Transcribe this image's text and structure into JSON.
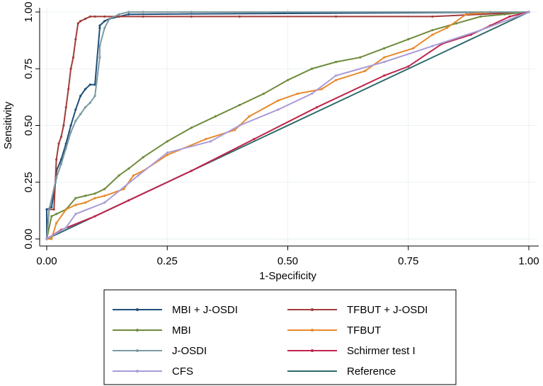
{
  "chart_data": {
    "type": "line",
    "xlabel": "1-Specificity",
    "ylabel": "Sensitivity",
    "xlim": [
      0,
      1
    ],
    "ylim": [
      0,
      1
    ],
    "xticks": [
      "0.00",
      "0.25",
      "0.50",
      "0.75",
      "1.00"
    ],
    "yticks": [
      "0.00",
      "0.25",
      "0.50",
      "0.75",
      "1.00"
    ],
    "grid": true,
    "legend_position": "bottom",
    "series": [
      {
        "name": "MBI + J-OSDI",
        "color": "#1f4e79",
        "x": [
          0,
          0,
          0.01,
          0.02,
          0.02,
          0.03,
          0.04,
          0.05,
          0.06,
          0.07,
          0.08,
          0.09,
          0.1,
          0.11,
          0.11,
          0.12,
          0.13,
          0.15,
          0.17,
          1.0
        ],
        "y": [
          0,
          0.13,
          0.14,
          0.27,
          0.3,
          0.35,
          0.42,
          0.5,
          0.57,
          0.63,
          0.66,
          0.68,
          0.68,
          0.93,
          0.94,
          0.96,
          0.97,
          0.98,
          0.99,
          1.0
        ]
      },
      {
        "name": "TFBUT + J-OSDI",
        "color": "#a23b3b",
        "x": [
          0,
          0.005,
          0.015,
          0.02,
          0.025,
          0.03,
          0.035,
          0.04,
          0.045,
          0.05,
          0.055,
          0.06,
          0.065,
          0.07,
          0.08,
          0.09,
          0.1,
          0.12,
          0.15,
          0.2,
          0.3,
          0.4,
          0.6,
          0.8,
          1.0
        ],
        "y": [
          0,
          0.13,
          0.13,
          0.35,
          0.42,
          0.45,
          0.5,
          0.58,
          0.66,
          0.75,
          0.8,
          0.88,
          0.95,
          0.96,
          0.97,
          0.98,
          0.98,
          0.98,
          0.98,
          0.98,
          0.98,
          0.98,
          0.98,
          0.98,
          1.0
        ]
      },
      {
        "name": "MBI",
        "color": "#6e8b3d",
        "x": [
          0,
          0.01,
          0.02,
          0.04,
          0.06,
          0.08,
          0.1,
          0.12,
          0.15,
          0.17,
          0.2,
          0.25,
          0.3,
          0.35,
          0.4,
          0.45,
          0.5,
          0.55,
          0.6,
          0.65,
          0.7,
          0.75,
          0.8,
          0.85,
          0.9,
          0.95,
          1.0
        ],
        "y": [
          0,
          0.1,
          0.11,
          0.13,
          0.18,
          0.19,
          0.2,
          0.22,
          0.28,
          0.31,
          0.36,
          0.43,
          0.49,
          0.54,
          0.59,
          0.64,
          0.7,
          0.75,
          0.78,
          0.8,
          0.84,
          0.88,
          0.92,
          0.95,
          0.98,
          0.99,
          1.0
        ]
      },
      {
        "name": "TFBUT",
        "color": "#e8892b",
        "x": [
          0,
          0.01,
          0.02,
          0.04,
          0.06,
          0.08,
          0.1,
          0.12,
          0.16,
          0.18,
          0.2,
          0.25,
          0.33,
          0.39,
          0.42,
          0.48,
          0.52,
          0.57,
          0.6,
          0.66,
          0.7,
          0.76,
          0.8,
          0.83,
          0.87,
          0.92,
          1.0
        ],
        "y": [
          0,
          0.0,
          0.07,
          0.13,
          0.15,
          0.16,
          0.18,
          0.19,
          0.22,
          0.28,
          0.3,
          0.37,
          0.44,
          0.48,
          0.54,
          0.61,
          0.64,
          0.66,
          0.7,
          0.74,
          0.8,
          0.84,
          0.9,
          0.93,
          0.99,
          1.0,
          1.0
        ]
      },
      {
        "name": "J-OSDI",
        "color": "#7a9aa0",
        "x": [
          0,
          0.005,
          0.02,
          0.03,
          0.04,
          0.05,
          0.06,
          0.07,
          0.08,
          0.09,
          0.1,
          0.11,
          0.11,
          0.12,
          0.13,
          0.15,
          0.17,
          0.2,
          0.3,
          0.5,
          1.0
        ],
        "y": [
          0,
          0.13,
          0.27,
          0.33,
          0.4,
          0.47,
          0.52,
          0.55,
          0.58,
          0.6,
          0.63,
          0.8,
          0.85,
          0.93,
          0.97,
          0.99,
          1.0,
          1.0,
          1.0,
          1.0,
          1.0
        ]
      },
      {
        "name": "Schirmer test I",
        "color": "#c0244b",
        "x": [
          0,
          0.03,
          0.1,
          0.17,
          0.3,
          0.43,
          0.56,
          0.7,
          0.75,
          0.82,
          0.88,
          0.92,
          0.96,
          1.0
        ],
        "y": [
          0,
          0.04,
          0.1,
          0.17,
          0.3,
          0.44,
          0.58,
          0.72,
          0.76,
          0.86,
          0.9,
          0.94,
          0.98,
          1.0
        ]
      },
      {
        "name": "CFS",
        "color": "#a99bd6",
        "x": [
          0,
          0.04,
          0.06,
          0.12,
          0.19,
          0.25,
          0.34,
          0.4,
          0.48,
          0.55,
          0.6,
          0.7,
          0.8,
          0.9,
          1.0
        ],
        "y": [
          0,
          0.05,
          0.11,
          0.16,
          0.28,
          0.38,
          0.43,
          0.5,
          0.57,
          0.64,
          0.72,
          0.78,
          0.85,
          0.92,
          1.0
        ]
      },
      {
        "name": "Reference",
        "color": "#2f6b6b",
        "x": [
          0,
          1
        ],
        "y": [
          0,
          1
        ]
      }
    ]
  }
}
